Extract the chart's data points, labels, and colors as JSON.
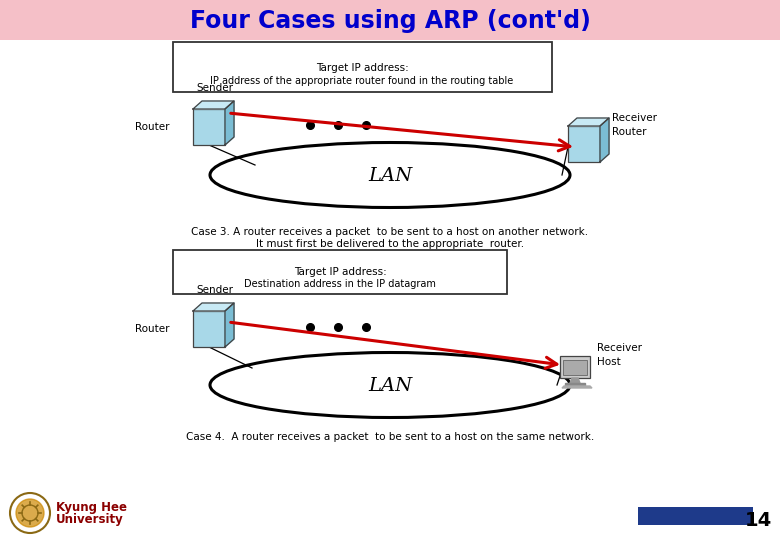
{
  "title": "Four Cases using ARP (cont'd)",
  "title_color": "#0000CC",
  "title_bg": "#F5C0C8",
  "slide_bg": "#FFFFFF",
  "page_number": "14",
  "university_line1": "Kyung Hee",
  "university_line2": "University",
  "university_color": "#8B0000",
  "case3_box_line1": "Target IP address:",
  "case3_box_line2": "IP address of the appropriate router found in the routing table",
  "case3_caption_line1": "Case 3. A router receives a packet  to be sent to a host on another network.",
  "case3_caption_line2": "It must first be delivered to the appropriate  router.",
  "case4_box_line1": "Target IP address:",
  "case4_box_line2": "Destination address in the IP datagram",
  "case4_caption": "Case 4.  A router receives a packet  to be sent to a host on the same network.",
  "lan_label": "LAN",
  "sender_label": "Sender",
  "receiver_label": "Receiver",
  "router_label": "Router",
  "host_label": "Host",
  "box_face": "#A8D8E8",
  "box_top": "#C8EAF5",
  "box_right": "#7BBDD4",
  "arrow_color": "#CC0000",
  "blue_bar": "#1E3A8A",
  "caption_color": "#000000"
}
